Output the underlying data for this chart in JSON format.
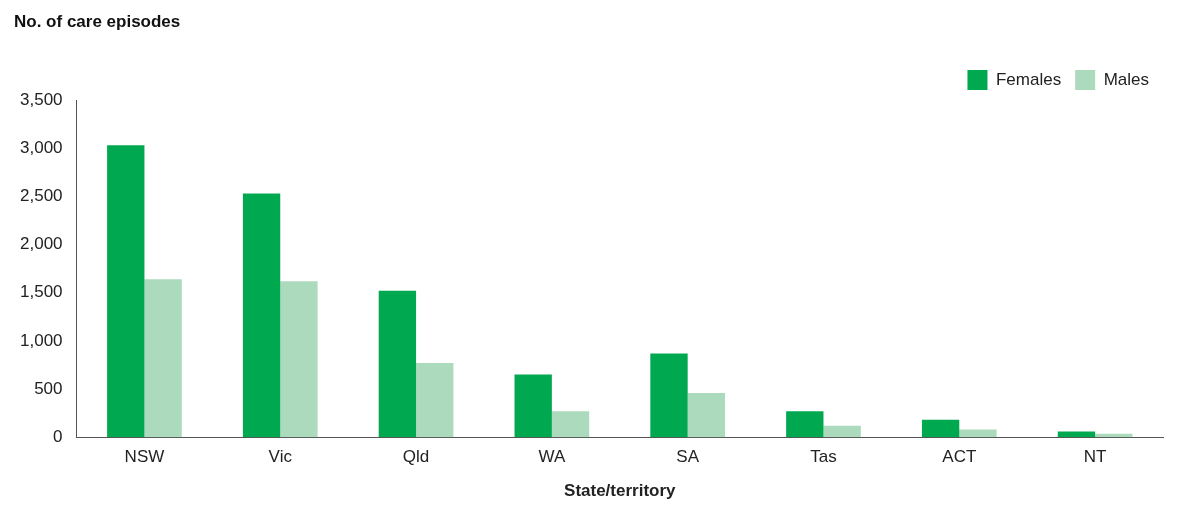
{
  "chart_data": {
    "type": "bar",
    "ylabel": "No. of care episodes",
    "xlabel": "State/territory",
    "categories": [
      "NSW",
      "Vic",
      "Qld",
      "WA",
      "SA",
      "Tas",
      "ACT",
      "NT"
    ],
    "series": [
      {
        "name": "Females",
        "color": "#00a84f",
        "values": [
          3030,
          2530,
          1520,
          650,
          870,
          270,
          180,
          60
        ]
      },
      {
        "name": "Males",
        "color": "#acdabc",
        "values": [
          1640,
          1620,
          770,
          270,
          460,
          120,
          80,
          35
        ]
      }
    ],
    "ylim": [
      0,
      3500
    ],
    "yticks": [
      {
        "value": 0,
        "label": "0"
      },
      {
        "value": 500,
        "label": "500"
      },
      {
        "value": 1000,
        "label": "1,000"
      },
      {
        "value": 1500,
        "label": "1,500"
      },
      {
        "value": 2000,
        "label": "2,000"
      },
      {
        "value": 2500,
        "label": "2,500"
      },
      {
        "value": 3000,
        "label": "3,000"
      },
      {
        "value": 3500,
        "label": "3,500"
      }
    ],
    "grid": false,
    "legend": "top right"
  }
}
